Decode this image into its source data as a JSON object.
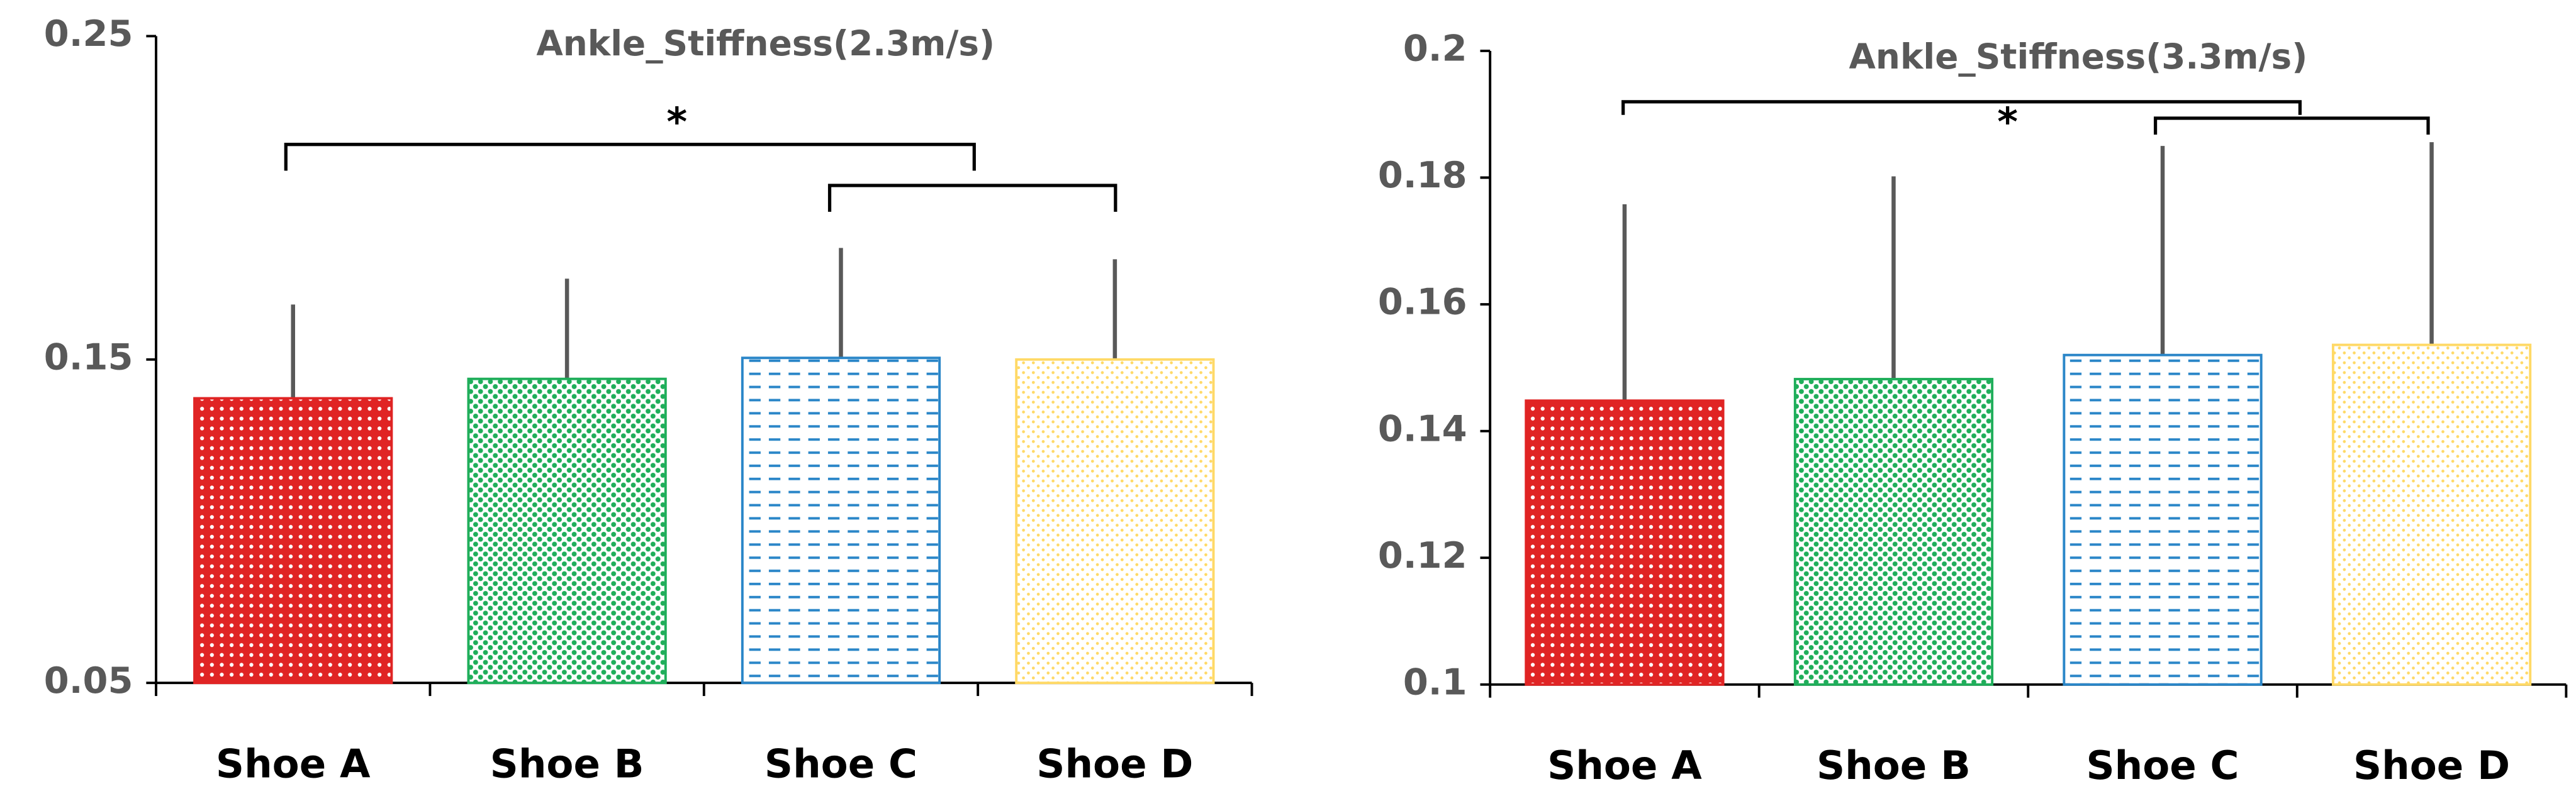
{
  "chart_data": [
    {
      "type": "bar",
      "title": "Ankle_Stiffness(2.3m/s)",
      "categories": [
        "Shoe A",
        "Shoe B",
        "Shoe C",
        "Shoe D"
      ],
      "values": [
        0.138,
        0.144,
        0.1505,
        0.15
      ],
      "errors": [
        0.029,
        0.031,
        0.034,
        0.031
      ],
      "colors": [
        "#e02424",
        "#1fae5a",
        "#2a86c8",
        "#ffd966"
      ],
      "ylim": [
        0.05,
        0.25
      ],
      "yticks": [
        0.05,
        0.15,
        0.25
      ],
      "annotations": [
        "*"
      ]
    },
    {
      "type": "bar",
      "title": "Ankle_Stiffness(3.3m/s)",
      "categories": [
        "Shoe A",
        "Shoe B",
        "Shoe C",
        "Shoe D"
      ],
      "values": [
        0.1448,
        0.1482,
        0.152,
        0.1536
      ],
      "errors": [
        0.031,
        0.032,
        0.033,
        0.032
      ],
      "colors": [
        "#e02424",
        "#1fae5a",
        "#2a86c8",
        "#ffd966"
      ],
      "ylim": [
        0.1,
        0.2
      ],
      "yticks": [
        0.1,
        0.12,
        0.14,
        0.16,
        0.18,
        0.2
      ],
      "annotations": [
        "*"
      ]
    }
  ]
}
